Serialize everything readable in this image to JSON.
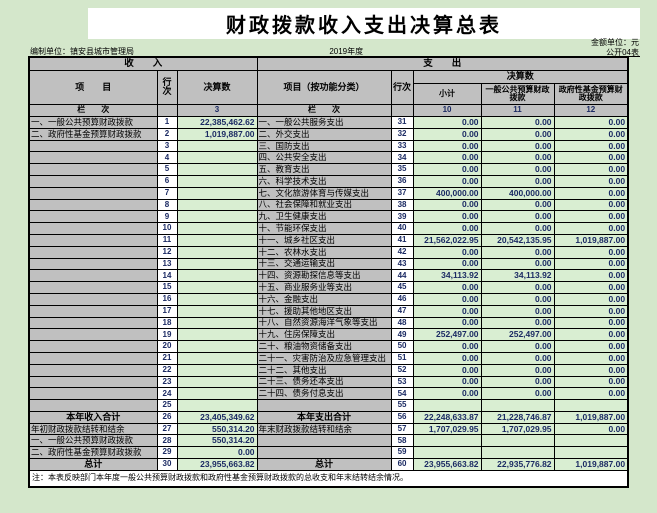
{
  "page": {
    "title": "财政拨款收入支出决算总表",
    "unit_line": "编制单位：镇安县城市管理局",
    "year": "2019年度",
    "amount_unit": "金额单位：元",
    "table_code": "公开04表"
  },
  "table": {
    "income_section_title": "收　　入",
    "expense_section_title": "支　　出",
    "income_item_header": "项　　目",
    "row_no_header": "行次",
    "amount_header": "决算数",
    "expense_item_header": "项目（按功能分类）",
    "subtotal_header": "小计",
    "general_budget_header": "一般公共预算财政拨款",
    "gov_fund_header": "政府性基金预算财政拨款",
    "column_row_label": "栏　　次",
    "income_col_no": "3",
    "subtotal_col_no": "10",
    "general_col_no": "11",
    "fund_col_no": "12",
    "note": "注：本表反映部门本年度一般公共预算财政拨款和政府性基金预算财政拨款的总收支和年末结转结余情况。"
  },
  "colors": {
    "page_bg": "#d4e7cb",
    "cell_gray": "#c0c0c0",
    "cell_green": "#d9eed2",
    "number_text": "#1b2a63"
  },
  "rows": [
    {
      "income_label": "一、一般公共预算财政拨款",
      "income_no": "1",
      "income_value": "22,385,462.62",
      "expense_label": "一、一般公共服务支出",
      "expense_no": "31",
      "expense_subtotal": "0.00",
      "expense_general": "0.00",
      "expense_fund": "0.00"
    },
    {
      "income_label": "二、政府性基金预算财政拨款",
      "income_no": "2",
      "income_value": "1,019,887.00",
      "expense_label": "二、外交支出",
      "expense_no": "32",
      "expense_subtotal": "0.00",
      "expense_general": "0.00",
      "expense_fund": "0.00"
    },
    {
      "income_label": "",
      "income_no": "3",
      "income_value": "",
      "expense_label": "三、国防支出",
      "expense_no": "33",
      "expense_subtotal": "0.00",
      "expense_general": "0.00",
      "expense_fund": "0.00"
    },
    {
      "income_label": "",
      "income_no": "4",
      "income_value": "",
      "expense_label": "四、公共安全支出",
      "expense_no": "34",
      "expense_subtotal": "0.00",
      "expense_general": "0.00",
      "expense_fund": "0.00"
    },
    {
      "income_label": "",
      "income_no": "5",
      "income_value": "",
      "expense_label": "五、教育支出",
      "expense_no": "35",
      "expense_subtotal": "0.00",
      "expense_general": "0.00",
      "expense_fund": "0.00"
    },
    {
      "income_label": "",
      "income_no": "6",
      "income_value": "",
      "expense_label": "六、科学技术支出",
      "expense_no": "36",
      "expense_subtotal": "0.00",
      "expense_general": "0.00",
      "expense_fund": "0.00"
    },
    {
      "income_label": "",
      "income_no": "7",
      "income_value": "",
      "expense_label": "七、文化旅游体育与传媒支出",
      "expense_no": "37",
      "expense_subtotal": "400,000.00",
      "expense_general": "400,000.00",
      "expense_fund": "0.00"
    },
    {
      "income_label": "",
      "income_no": "8",
      "income_value": "",
      "expense_label": "八、社会保障和就业支出",
      "expense_no": "38",
      "expense_subtotal": "0.00",
      "expense_general": "0.00",
      "expense_fund": "0.00"
    },
    {
      "income_label": "",
      "income_no": "9",
      "income_value": "",
      "expense_label": "九、卫生健康支出",
      "expense_no": "39",
      "expense_subtotal": "0.00",
      "expense_general": "0.00",
      "expense_fund": "0.00"
    },
    {
      "income_label": "",
      "income_no": "10",
      "income_value": "",
      "expense_label": "十、节能环保支出",
      "expense_no": "40",
      "expense_subtotal": "0.00",
      "expense_general": "0.00",
      "expense_fund": "0.00"
    },
    {
      "income_label": "",
      "income_no": "11",
      "income_value": "",
      "expense_label": "十一、城乡社区支出",
      "expense_no": "41",
      "expense_subtotal": "21,562,022.95",
      "expense_general": "20,542,135.95",
      "expense_fund": "1,019,887.00"
    },
    {
      "income_label": "",
      "income_no": "12",
      "income_value": "",
      "expense_label": "十二、农林水支出",
      "expense_no": "42",
      "expense_subtotal": "0.00",
      "expense_general": "0.00",
      "expense_fund": "0.00"
    },
    {
      "income_label": "",
      "income_no": "13",
      "income_value": "",
      "expense_label": "十三、交通运输支出",
      "expense_no": "43",
      "expense_subtotal": "0.00",
      "expense_general": "0.00",
      "expense_fund": "0.00"
    },
    {
      "income_label": "",
      "income_no": "14",
      "income_value": "",
      "expense_label": "十四、资源勘探信息等支出",
      "expense_no": "44",
      "expense_subtotal": "34,113.92",
      "expense_general": "34,113.92",
      "expense_fund": "0.00"
    },
    {
      "income_label": "",
      "income_no": "15",
      "income_value": "",
      "expense_label": "十五、商业服务业等支出",
      "expense_no": "45",
      "expense_subtotal": "0.00",
      "expense_general": "0.00",
      "expense_fund": "0.00"
    },
    {
      "income_label": "",
      "income_no": "16",
      "income_value": "",
      "expense_label": "十六、金融支出",
      "expense_no": "46",
      "expense_subtotal": "0.00",
      "expense_general": "0.00",
      "expense_fund": "0.00"
    },
    {
      "income_label": "",
      "income_no": "17",
      "income_value": "",
      "expense_label": "十七、援助其他地区支出",
      "expense_no": "47",
      "expense_subtotal": "0.00",
      "expense_general": "0.00",
      "expense_fund": "0.00"
    },
    {
      "income_label": "",
      "income_no": "18",
      "income_value": "",
      "expense_label": "十八、自然资源海洋气象等支出",
      "expense_no": "48",
      "expense_subtotal": "0.00",
      "expense_general": "0.00",
      "expense_fund": "0.00"
    },
    {
      "income_label": "",
      "income_no": "19",
      "income_value": "",
      "expense_label": "十九、住房保障支出",
      "expense_no": "49",
      "expense_subtotal": "252,497.00",
      "expense_general": "252,497.00",
      "expense_fund": "0.00"
    },
    {
      "income_label": "",
      "income_no": "20",
      "income_value": "",
      "expense_label": "二十、粮油物资储备支出",
      "expense_no": "50",
      "expense_subtotal": "0.00",
      "expense_general": "0.00",
      "expense_fund": "0.00"
    },
    {
      "income_label": "",
      "income_no": "21",
      "income_value": "",
      "expense_label": "二十一、灾害防治及应急管理支出",
      "expense_no": "51",
      "expense_subtotal": "0.00",
      "expense_general": "0.00",
      "expense_fund": "0.00"
    },
    {
      "income_label": "",
      "income_no": "22",
      "income_value": "",
      "expense_label": "二十二、其他支出",
      "expense_no": "52",
      "expense_subtotal": "0.00",
      "expense_general": "0.00",
      "expense_fund": "0.00"
    },
    {
      "income_label": "",
      "income_no": "23",
      "income_value": "",
      "expense_label": "二十三、债务还本支出",
      "expense_no": "53",
      "expense_subtotal": "0.00",
      "expense_general": "0.00",
      "expense_fund": "0.00"
    },
    {
      "income_label": "",
      "income_no": "24",
      "income_value": "",
      "expense_label": "二十四、债务付息支出",
      "expense_no": "54",
      "expense_subtotal": "0.00",
      "expense_general": "0.00",
      "expense_fund": "0.00"
    },
    {
      "income_label": "",
      "income_no": "25",
      "income_value": "",
      "expense_label": "",
      "expense_no": "55",
      "expense_subtotal": "",
      "expense_general": "",
      "expense_fund": ""
    },
    {
      "income_label": "本年收入合计",
      "income_bold": true,
      "income_no": "26",
      "income_value": "23,405,349.62",
      "expense_label": "本年支出合计",
      "expense_bold": true,
      "expense_no": "56",
      "expense_subtotal": "22,248,633.87",
      "expense_general": "21,228,746.87",
      "expense_fund": "1,019,887.00"
    },
    {
      "income_label": "年初财政拨款结转和结余",
      "income_no": "27",
      "income_value": "550,314.20",
      "expense_label": "年末财政拨款结转和结余",
      "expense_no": "57",
      "expense_subtotal": "1,707,029.95",
      "expense_general": "1,707,029.95",
      "expense_fund": "0.00"
    },
    {
      "income_label": "一、一般公共预算财政拨款",
      "income_no": "28",
      "income_value": "550,314.20",
      "expense_label": "",
      "expense_no": "58",
      "expense_subtotal": "",
      "expense_general": "",
      "expense_fund": ""
    },
    {
      "income_label": "二、政府性基金预算财政拨款",
      "income_no": "29",
      "income_value": "0.00",
      "expense_label": "",
      "expense_no": "59",
      "expense_subtotal": "",
      "expense_general": "",
      "expense_fund": ""
    },
    {
      "income_label": "总计",
      "income_bold": true,
      "income_no": "30",
      "income_value": "23,955,663.82",
      "expense_label": "总计",
      "expense_bold": true,
      "expense_no": "60",
      "expense_subtotal": "23,955,663.82",
      "expense_general": "22,935,776.82",
      "expense_fund": "1,019,887.00"
    }
  ]
}
